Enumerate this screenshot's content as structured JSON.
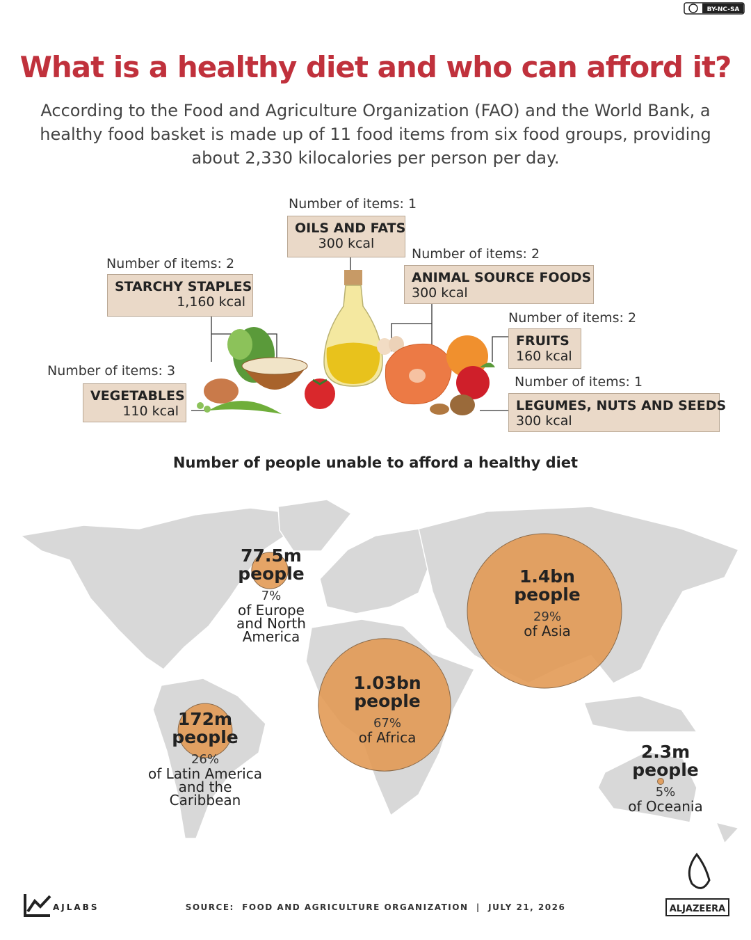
{
  "license": "BY-NC-SA",
  "header": {
    "title": "What is a healthy diet and who can afford it?",
    "subtitle": "According to the Food and Agriculture Organization (FAO) and the World Bank, a healthy food basket is made up of 11 food items from six food groups, providing about 2,330 kilocalories per person per day."
  },
  "food_groups": [
    {
      "count_label": "Number of items: 1",
      "name": "OILS AND FATS",
      "kcal": "300 kcal"
    },
    {
      "count_label": "Number of items: 2",
      "name": "STARCHY STAPLES",
      "kcal": "1,160 kcal"
    },
    {
      "count_label": "Number of items: 2",
      "name": "ANIMAL SOURCE FOODS",
      "kcal": "300 kcal"
    },
    {
      "count_label": "Number of items: 2",
      "name": "FRUITS",
      "kcal": "160 kcal"
    },
    {
      "count_label": "Number of items: 3",
      "name": "VEGETABLES",
      "kcal": "110 kcal"
    },
    {
      "count_label": "Number of items: 1",
      "name": "LEGUMES, NUTS AND SEEDS",
      "kcal": "300 kcal"
    }
  ],
  "map": {
    "title": "Number of people unable to afford a healthy diet",
    "regions": [
      {
        "amount": "77.5m",
        "unit": "people",
        "people_millions": 77.5,
        "share": "7%",
        "region": "of Europe and North America"
      },
      {
        "amount": "1.4bn",
        "unit": "people",
        "people_millions": 1400,
        "share": "29%",
        "region": "of Asia"
      },
      {
        "amount": "1.03bn",
        "unit": "people",
        "people_millions": 1030,
        "share": "67%",
        "region": "of Africa"
      },
      {
        "amount": "172m",
        "unit": "people",
        "people_millions": 172,
        "share": "26%",
        "region": "of Latin America and the Caribbean"
      },
      {
        "amount": "2.3m",
        "unit": "people",
        "people_millions": 2.3,
        "share": "5%",
        "region": "of Oceania"
      }
    ]
  },
  "footer": {
    "brand": "AJLABS",
    "source": "SOURCE:  FOOD AND AGRICULTURE ORGANIZATION  |  JULY 21, 2026",
    "logo": "ALJAZEERA"
  }
}
